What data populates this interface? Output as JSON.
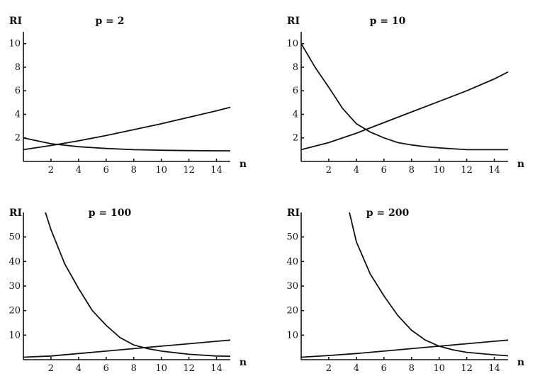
{
  "chart_data": [
    {
      "type": "line",
      "title": "p = 2",
      "xlabel": "n",
      "ylabel": "RI",
      "xlim": [
        0,
        15
      ],
      "ylim": [
        0,
        11
      ],
      "xticks": [
        2,
        4,
        6,
        8,
        10,
        12,
        14
      ],
      "yticks": [
        2,
        4,
        6,
        8,
        10
      ],
      "series": [
        {
          "x": [
            0,
            2,
            4,
            6,
            8,
            10,
            12,
            14,
            15
          ],
          "values": [
            2.0,
            1.5,
            1.25,
            1.1,
            1.0,
            0.95,
            0.92,
            0.9,
            0.9
          ]
        },
        {
          "x": [
            0,
            2,
            4,
            6,
            8,
            10,
            12,
            14,
            15
          ],
          "values": [
            1.0,
            1.35,
            1.75,
            2.2,
            2.7,
            3.2,
            3.75,
            4.3,
            4.6
          ]
        }
      ]
    },
    {
      "type": "line",
      "title": "p = 10",
      "xlabel": "n",
      "ylabel": "RI",
      "xlim": [
        0,
        15
      ],
      "ylim": [
        0,
        11
      ],
      "xticks": [
        2,
        4,
        6,
        8,
        10,
        12,
        14
      ],
      "yticks": [
        2,
        4,
        6,
        8,
        10
      ],
      "series": [
        {
          "x": [
            0,
            1,
            2,
            3,
            4,
            5,
            6,
            7,
            8,
            9,
            10,
            12,
            14,
            15
          ],
          "values": [
            10.0,
            8.0,
            6.3,
            4.5,
            3.2,
            2.5,
            2.0,
            1.6,
            1.4,
            1.25,
            1.15,
            1.0,
            1.0,
            1.0
          ]
        },
        {
          "x": [
            0,
            2,
            4,
            6,
            8,
            10,
            12,
            14,
            15
          ],
          "values": [
            1.0,
            1.6,
            2.4,
            3.3,
            4.2,
            5.1,
            6.0,
            7.0,
            7.6
          ]
        }
      ]
    },
    {
      "type": "line",
      "title": "p = 100",
      "xlabel": "n",
      "ylabel": "RI",
      "xlim": [
        0,
        15
      ],
      "ylim": [
        0,
        60
      ],
      "xticks": [
        2,
        4,
        6,
        8,
        10,
        12,
        14
      ],
      "yticks": [
        10,
        20,
        30,
        40,
        50
      ],
      "series": [
        {
          "x": [
            1.6,
            2,
            3,
            4,
            5,
            6,
            7,
            8,
            9,
            10,
            12,
            14,
            15
          ],
          "values": [
            60,
            53,
            39,
            29,
            20,
            14,
            9,
            6,
            4.5,
            3.5,
            2.2,
            1.5,
            1.4
          ]
        },
        {
          "x": [
            0,
            2,
            4,
            6,
            8,
            10,
            12,
            14,
            15
          ],
          "values": [
            1.0,
            1.5,
            2.5,
            3.5,
            4.5,
            5.5,
            6.5,
            7.5,
            8.0
          ]
        }
      ]
    },
    {
      "type": "line",
      "title": "p = 200",
      "xlabel": "n",
      "ylabel": "RI",
      "xlim": [
        0,
        15
      ],
      "ylim": [
        0,
        60
      ],
      "xticks": [
        2,
        4,
        6,
        8,
        10,
        12,
        14
      ],
      "yticks": [
        10,
        20,
        30,
        40,
        50
      ],
      "series": [
        {
          "x": [
            3.5,
            4,
            5,
            6,
            7,
            8,
            9,
            10,
            11,
            12,
            14,
            15
          ],
          "values": [
            60,
            48,
            35,
            26,
            18,
            12,
            8,
            5.5,
            4,
            3,
            2,
            1.6
          ]
        },
        {
          "x": [
            0,
            2,
            4,
            6,
            8,
            10,
            12,
            14,
            15
          ],
          "values": [
            1.0,
            1.7,
            2.5,
            3.5,
            4.5,
            5.5,
            6.5,
            7.5,
            8.0
          ]
        }
      ]
    }
  ]
}
